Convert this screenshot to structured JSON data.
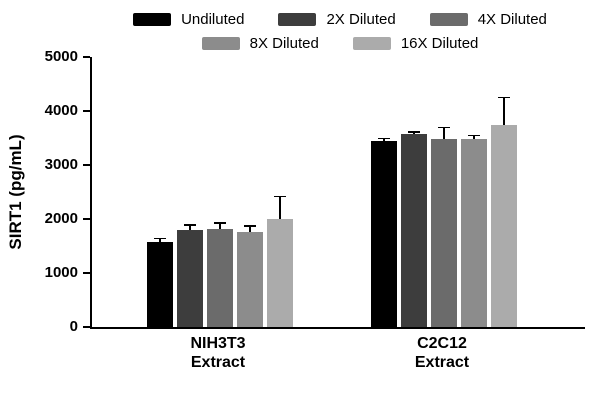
{
  "chart_data": {
    "type": "bar",
    "title": "",
    "xlabel": "",
    "ylabel": "SIRT1 (pg/mL)",
    "ylim": [
      0,
      5000
    ],
    "yticks": [
      0,
      1000,
      2000,
      3000,
      4000,
      5000
    ],
    "grid": false,
    "legend_position": "top",
    "categories": [
      {
        "line1": "NIH3T3",
        "line2": "Extract"
      },
      {
        "line1": "C2C12",
        "line2": "Extract"
      }
    ],
    "series": [
      {
        "name": "Undiluted",
        "color": "#000000",
        "values": [
          1575,
          3445
        ],
        "errors": [
          50,
          30
        ]
      },
      {
        "name": "2X Diluted",
        "color": "#3d3d3d",
        "values": [
          1795,
          3575
        ],
        "errors": [
          80,
          25
        ]
      },
      {
        "name": "4X Diluted",
        "color": "#6b6b6b",
        "values": [
          1815,
          3480
        ],
        "errors": [
          100,
          200
        ]
      },
      {
        "name": "8X Diluted",
        "color": "#8c8c8c",
        "values": [
          1760,
          3480
        ],
        "errors": [
          100,
          50
        ]
      },
      {
        "name": "16X Diluted",
        "color": "#ababab",
        "values": [
          2000,
          3740
        ],
        "errors": [
          400,
          500
        ]
      }
    ]
  }
}
